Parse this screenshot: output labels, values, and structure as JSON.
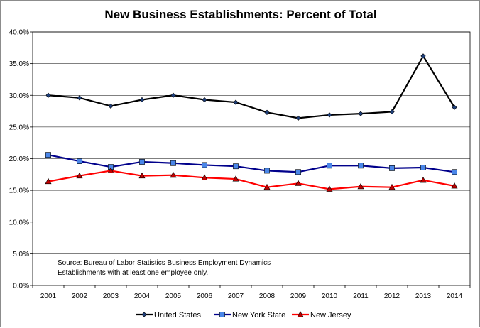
{
  "chart_data": {
    "type": "line",
    "title": "New Business Establishments:  Percent of Total",
    "xlabel": "",
    "ylabel": "",
    "categories": [
      "2001",
      "2002",
      "2003",
      "2004",
      "2005",
      "2006",
      "2007",
      "2008",
      "2009",
      "2010",
      "2011",
      "2012",
      "2013",
      "2014"
    ],
    "ylim": [
      0,
      40
    ],
    "yticks": [
      0,
      5,
      10,
      15,
      20,
      25,
      30,
      35,
      40
    ],
    "ytick_labels": [
      "0.0%",
      "5.0%",
      "10.0%",
      "15.0%",
      "20.0%",
      "25.0%",
      "30.0%",
      "35.0%",
      "40.0%"
    ],
    "grid": "horizontal",
    "legend_position": "bottom",
    "series": [
      {
        "name": "United States",
        "color": "#000000",
        "marker": "diamond",
        "marker_color": "#1f3f7a",
        "values": [
          30.0,
          29.6,
          28.3,
          29.3,
          30.0,
          29.3,
          28.9,
          27.3,
          26.4,
          26.9,
          27.1,
          27.4,
          36.2,
          28.1
        ]
      },
      {
        "name": "New York State",
        "color": "#00008b",
        "marker": "square",
        "marker_color": "#4a86e8",
        "values": [
          20.6,
          19.6,
          18.7,
          19.5,
          19.3,
          19.0,
          18.8,
          18.1,
          17.9,
          18.9,
          18.9,
          18.5,
          18.6,
          17.9
        ]
      },
      {
        "name": "New Jersey",
        "color": "#ff0000",
        "marker": "triangle",
        "marker_color": "#c00000",
        "values": [
          16.4,
          17.3,
          18.1,
          17.3,
          17.4,
          17.0,
          16.8,
          15.5,
          16.1,
          15.2,
          15.6,
          15.5,
          16.6,
          15.7
        ]
      }
    ],
    "annotations": [
      "Source:  Bureau of Labor Statistics Business Employment Dynamics",
      "Establishments with at least one employee only."
    ]
  }
}
